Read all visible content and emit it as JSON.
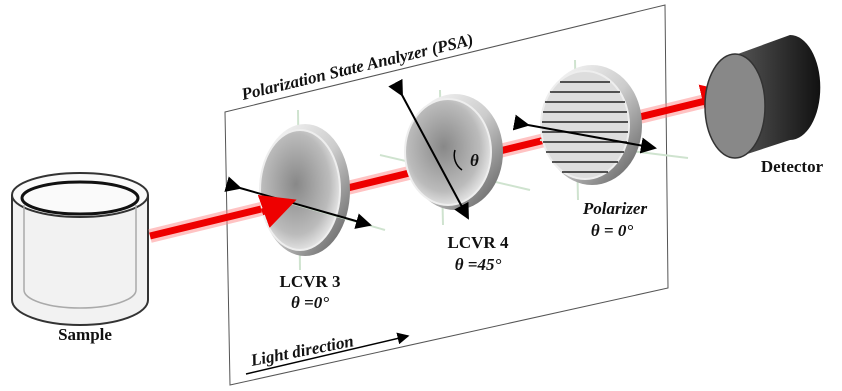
{
  "title": "Polarization State Analyzer (PSA)",
  "sample": {
    "label": "Sample"
  },
  "detector": {
    "label": "Detector"
  },
  "lcvr3": {
    "label": "LCVR 3",
    "angle": "θ =0°"
  },
  "lcvr4": {
    "label": "LCVR 4",
    "angle": "θ =45°",
    "theta": "θ"
  },
  "polarizer": {
    "label": "Polarizer",
    "angle": "θ = 0°"
  },
  "light_direction": "Light direction"
}
